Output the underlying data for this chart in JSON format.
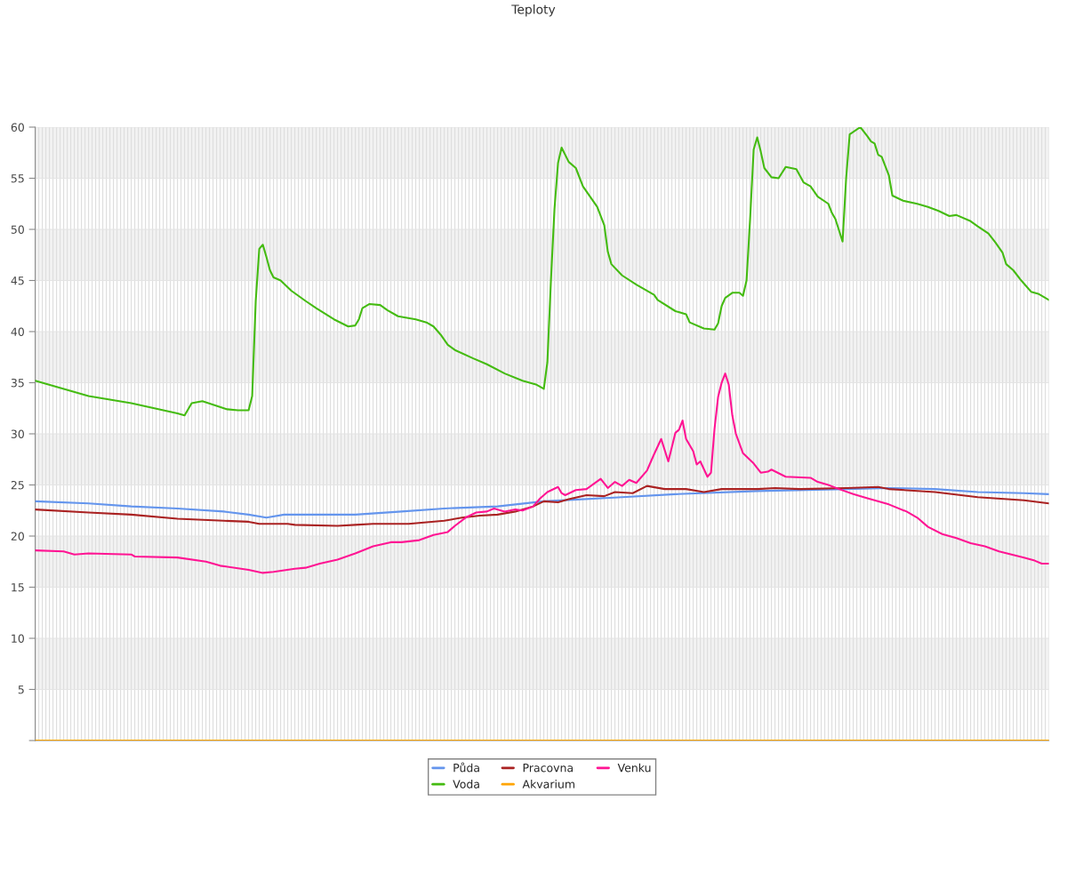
{
  "chart_data": {
    "type": "line",
    "title": "Teploty",
    "categories": [
      null,
      null,
      null,
      null,
      null,
      null,
      null,
      null,
      null,
      null,
      null,
      null,
      null,
      null,
      null,
      null,
      null,
      null,
      null,
      null,
      null,
      null,
      null,
      null,
      null,
      null,
      null,
      null,
      null,
      null,
      null,
      null,
      null,
      null,
      null,
      null,
      null,
      null,
      null,
      null,
      null,
      null,
      null,
      null,
      null,
      null,
      null,
      null,
      null,
      null,
      null,
      null,
      null,
      null,
      null,
      null,
      null,
      null,
      null,
      null,
      null,
      null,
      null,
      null,
      null,
      null,
      null,
      null,
      null,
      null,
      null,
      null,
      null,
      null,
      null,
      null,
      null,
      null,
      null,
      null,
      null,
      null,
      null,
      null,
      null,
      null,
      null,
      null,
      null,
      null,
      null,
      null,
      null,
      null,
      null,
      null,
      null,
      null,
      null,
      null,
      null,
      null,
      null,
      null,
      null,
      null,
      null,
      null,
      null,
      null,
      null,
      null,
      null,
      null,
      null,
      null,
      null,
      null,
      null,
      null,
      null,
      null,
      null,
      null,
      null,
      null,
      null,
      null,
      null,
      null,
      null,
      null,
      null,
      null,
      null,
      null,
      null,
      null,
      null,
      null,
      null,
      null,
      null,
      null,
      null,
      null,
      null,
      null,
      null,
      null,
      null,
      null,
      null,
      null,
      null,
      null,
      null,
      null,
      null,
      null,
      null,
      null,
      null,
      null,
      null,
      null,
      null,
      null,
      null,
      null,
      null,
      null,
      null,
      null,
      null,
      null,
      null,
      null,
      null,
      null,
      null,
      null,
      null,
      null,
      null,
      null,
      null,
      null,
      null,
      null,
      null,
      null,
      null,
      null,
      null,
      null,
      null,
      null,
      null,
      null,
      null,
      null,
      null,
      null,
      null,
      null,
      null,
      null,
      null,
      null,
      null,
      null,
      null,
      null,
      null,
      null,
      null,
      null,
      null,
      null,
      null,
      null,
      null,
      null,
      null,
      null,
      null,
      null,
      null,
      null,
      null,
      null,
      null,
      null,
      null,
      null,
      null,
      null,
      null,
      null,
      null,
      null,
      null,
      null,
      null,
      null,
      null,
      null,
      null,
      null,
      null,
      null,
      null,
      null,
      null,
      null,
      null,
      null,
      null,
      null,
      null,
      null,
      null,
      null,
      null,
      null,
      null,
      null,
      null,
      null,
      null,
      null,
      null,
      null,
      null,
      null,
      null,
      null,
      null,
      null,
      null,
      null,
      null,
      null,
      null,
      null
    ],
    "ylim": [
      0,
      60
    ],
    "yticks": [
      {
        "value": 0,
        "label": null
      },
      5,
      10,
      15,
      20,
      25,
      30,
      35,
      40,
      45,
      50,
      55,
      60
    ],
    "grid": true,
    "legend": "bottom",
    "marker": "none",
    "line_style": "solid",
    "bands": [
      {
        "axis": "y",
        "from": 5,
        "to": 10,
        "color": "#f2f2f2"
      },
      {
        "axis": "y",
        "from": 15,
        "to": 20,
        "color": "#f2f2f2"
      },
      {
        "axis": "y",
        "from": 25,
        "to": 30,
        "color": "#f2f2f2"
      },
      {
        "axis": "y",
        "from": 35,
        "to": 40,
        "color": "#f2f2f2"
      },
      {
        "axis": "y",
        "from": 45,
        "to": 50,
        "color": "#f2f2f2"
      },
      {
        "axis": "y",
        "from": 55,
        "to": 60,
        "color": "#f2f2f2"
      }
    ],
    "series": [
      {
        "name": "Půda",
        "color": "#6495ed",
        "values": [
          23.4,
          null,
          null,
          null,
          null,
          null,
          null,
          null,
          null,
          null,
          null,
          null,
          null,
          null,
          null,
          23.2,
          null,
          null,
          null,
          null,
          null,
          null,
          null,
          null,
          null,
          null,
          null,
          22.9,
          null,
          null,
          null,
          null,
          null,
          null,
          null,
          null,
          null,
          null,
          null,
          null,
          22.7,
          null,
          null,
          null,
          null,
          null,
          null,
          null,
          null,
          null,
          null,
          null,
          null,
          22.4,
          null,
          null,
          null,
          null,
          null,
          null,
          22.1,
          null,
          null,
          null,
          null,
          21.8,
          null,
          null,
          null,
          null,
          22.1,
          null,
          null,
          null,
          null,
          null,
          null,
          null,
          null,
          null,
          null,
          null,
          null,
          null,
          null,
          null,
          null,
          null,
          null,
          null,
          22.1,
          null,
          null,
          null,
          null,
          null,
          null,
          null,
          null,
          null,
          null,
          null,
          null,
          22.4,
          null,
          null,
          null,
          null,
          null,
          null,
          null,
          null,
          null,
          null,
          null,
          22.7,
          null,
          null,
          null,
          null,
          null,
          null,
          null,
          null,
          null,
          null,
          null,
          null,
          null,
          null,
          22.9,
          null,
          null,
          null,
          null,
          null,
          null,
          null,
          null,
          null,
          null,
          null,
          null,
          23.4,
          null,
          null,
          null,
          null,
          null,
          null,
          null,
          null,
          null,
          null,
          null,
          null,
          null,
          null,
          null,
          null,
          null,
          null,
          null,
          null,
          null,
          23.8,
          null,
          null,
          null,
          null,
          null,
          null,
          null,
          null,
          null,
          null,
          null,
          null,
          null,
          null,
          24.1,
          null,
          null,
          null,
          null,
          null,
          null,
          null,
          null,
          null,
          null,
          null,
          null,
          null,
          null,
          null,
          null,
          null,
          null,
          null,
          null,
          null,
          null,
          24.4,
          null,
          null,
          null,
          null,
          null,
          null,
          null,
          null,
          null,
          null,
          null,
          null,
          null,
          null,
          null,
          null,
          null,
          null,
          null,
          null,
          null,
          null,
          null,
          null,
          24.6,
          null,
          null,
          null,
          null,
          null,
          null,
          null,
          null,
          null,
          null,
          null,
          24.7,
          null,
          null,
          null,
          null,
          null,
          null,
          null,
          null,
          null,
          null,
          null,
          null,
          24.6,
          null,
          null,
          null,
          null,
          null,
          null,
          null,
          null,
          null,
          null,
          null,
          24.3,
          null,
          null,
          null,
          null,
          null,
          null,
          null,
          null,
          null,
          null,
          null,
          null,
          24.2,
          null,
          null,
          null,
          null,
          null,
          null,
          24.1
        ]
      },
      {
        "name": "Voda",
        "color": "#44bb11",
        "values": [
          35.2,
          null,
          null,
          null,
          null,
          34.7,
          null,
          null,
          null,
          null,
          null,
          null,
          null,
          null,
          null,
          33.7,
          null,
          null,
          null,
          null,
          null,
          null,
          null,
          null,
          null,
          null,
          null,
          33.0,
          null,
          null,
          null,
          null,
          null,
          null,
          null,
          null,
          null,
          null,
          null,
          null,
          32.0,
          null,
          31.8,
          null,
          33.0,
          null,
          null,
          33.2,
          null,
          null,
          null,
          null,
          null,
          null,
          32.4,
          null,
          null,
          32.3,
          null,
          null,
          32.3,
          33.7,
          43,
          48.1,
          48.5,
          47.3,
          46,
          45.3,
          null,
          45.0,
          null,
          null,
          44.0,
          null,
          null,
          null,
          43.0,
          null,
          null,
          42.3,
          null,
          null,
          null,
          null,
          41.2,
          null,
          null,
          null,
          40.5,
          null,
          40.6,
          41.2,
          42.3,
          null,
          42.7,
          null,
          null,
          42.6,
          null,
          42.1,
          null,
          null,
          41.5,
          null,
          null,
          null,
          null,
          41.2,
          null,
          null,
          40.9,
          null,
          40.5,
          null,
          39.7,
          null,
          38.7,
          null,
          38.2,
          null,
          null,
          null,
          null,
          37.4,
          null,
          null,
          null,
          36.8,
          null,
          null,
          null,
          null,
          35.9,
          null,
          null,
          null,
          null,
          35.2,
          null,
          null,
          null,
          34.8,
          null,
          34.4,
          37,
          45,
          52,
          56.5,
          58.0,
          null,
          56.6,
          null,
          56,
          null,
          54.2,
          null,
          53.2,
          null,
          52.2,
          null,
          50.4,
          47.8,
          46.6,
          null,
          null,
          45.5,
          null,
          null,
          null,
          44.6,
          null,
          null,
          null,
          null,
          43.6,
          43.1,
          null,
          null,
          null,
          null,
          42.0,
          null,
          null,
          41.7,
          40.9,
          null,
          null,
          null,
          40.3,
          null,
          null,
          40.2,
          40.8,
          42.5,
          43.3,
          null,
          43.8,
          null,
          43.8,
          43.5,
          45,
          51,
          57.8,
          59.0,
          57.6,
          56,
          null,
          55.1,
          null,
          55.0,
          null,
          56.1,
          null,
          null,
          55.9,
          null,
          54.6,
          null,
          54.2,
          null,
          53.2,
          null,
          null,
          52.5,
          51.6,
          51.0,
          null,
          48.8,
          55.0,
          59.3,
          null,
          null,
          60.0,
          null,
          59.1,
          58.6,
          58.4,
          57.3,
          57.1,
          null,
          55.3,
          53.3,
          null,
          null,
          52.8,
          null,
          null,
          null,
          52.5,
          null,
          null,
          52.2,
          null,
          null,
          51.8,
          null,
          null,
          51.3,
          null,
          51.4,
          null,
          null,
          null,
          50.8,
          null,
          50.3,
          null,
          null,
          49.6,
          null,
          48.7,
          null,
          47.7,
          46.6,
          null,
          46.0,
          null,
          45.1,
          44.7,
          null,
          43.9,
          null,
          43.7,
          null,
          null,
          43.1
        ]
      },
      {
        "name": "Pracovna",
        "color": "#aa2222",
        "values": [
          22.6,
          null,
          null,
          null,
          null,
          null,
          null,
          null,
          null,
          null,
          null,
          null,
          null,
          null,
          null,
          22.3,
          null,
          null,
          null,
          null,
          null,
          null,
          null,
          null,
          null,
          null,
          null,
          22.1,
          null,
          null,
          null,
          null,
          null,
          null,
          null,
          null,
          null,
          null,
          null,
          null,
          21.7,
          null,
          null,
          null,
          null,
          null,
          null,
          null,
          null,
          null,
          null,
          null,
          null,
          21.5,
          null,
          null,
          null,
          null,
          null,
          null,
          21.4,
          null,
          null,
          21.2,
          null,
          null,
          null,
          null,
          null,
          null,
          null,
          21.2,
          null,
          21.1,
          null,
          null,
          null,
          null,
          null,
          null,
          null,
          null,
          null,
          null,
          null,
          21.0,
          null,
          null,
          null,
          null,
          21.1,
          null,
          null,
          null,
          null,
          21.2,
          null,
          null,
          null,
          null,
          null,
          null,
          null,
          null,
          null,
          21.2,
          null,
          null,
          null,
          null,
          null,
          null,
          null,
          null,
          null,
          21.5,
          null,
          null,
          null,
          null,
          21.8,
          null,
          null,
          null,
          null,
          22.0,
          null,
          null,
          null,
          null,
          22.1,
          null,
          null,
          null,
          null,
          22.4,
          null,
          null,
          null,
          null,
          22.9,
          null,
          null,
          23.4,
          null,
          null,
          null,
          23.3,
          null,
          null,
          23.6,
          null,
          null,
          null,
          null,
          24.0,
          null,
          null,
          null,
          null,
          23.9,
          null,
          null,
          24.3,
          null,
          null,
          null,
          null,
          24.2,
          null,
          null,
          null,
          24.9,
          null,
          null,
          null,
          null,
          24.6,
          null,
          null,
          null,
          null,
          null,
          24.6,
          null,
          null,
          null,
          null,
          24.3,
          null,
          null,
          null,
          null,
          24.6,
          null,
          null,
          null,
          null,
          null,
          null,
          null,
          null,
          null,
          24.6,
          null,
          null,
          null,
          null,
          24.7,
          null,
          null,
          null,
          null,
          null,
          null,
          24.6,
          null,
          null,
          null,
          null,
          null,
          null,
          null,
          null,
          null,
          null,
          null,
          null,
          24.7,
          null,
          null,
          null,
          null,
          null,
          null,
          null,
          null,
          24.8,
          null,
          null,
          24.6,
          null,
          null,
          null,
          null,
          null,
          null,
          null,
          null,
          null,
          null,
          null,
          null,
          24.3,
          null,
          null,
          null,
          null,
          null,
          null,
          null,
          null,
          null,
          null,
          null,
          23.8,
          null,
          null,
          null,
          null,
          null,
          null,
          null,
          null,
          null,
          null,
          null,
          null,
          23.5,
          null,
          null,
          null,
          null,
          null,
          null,
          23.2
        ]
      },
      {
        "name": "Akvarium",
        "color": "#ffa500",
        "values": [
          0,
          0,
          0,
          0,
          0,
          0,
          0,
          0,
          0,
          0,
          0,
          0,
          0,
          0,
          0,
          0,
          0,
          0,
          0,
          0,
          0,
          0,
          0,
          0,
          0,
          0,
          0,
          0,
          0,
          0,
          0,
          0,
          0,
          0,
          0,
          0,
          0,
          0,
          0,
          0,
          0,
          0,
          0,
          0,
          0,
          0,
          0,
          0,
          0,
          0,
          0,
          0,
          0,
          0,
          0,
          0,
          0,
          0,
          0,
          0,
          0,
          0,
          0,
          0,
          0,
          0,
          0,
          0,
          0,
          0,
          0,
          0,
          0,
          0,
          0,
          0,
          0,
          0,
          0,
          0,
          0,
          0,
          0,
          0,
          0,
          0,
          0,
          0,
          0,
          0,
          0,
          0,
          0,
          0,
          0,
          0,
          0,
          0,
          0,
          0,
          0,
          0,
          0,
          0,
          0,
          0,
          0,
          0,
          0,
          0,
          0,
          0,
          0,
          0,
          0,
          0,
          0,
          0,
          0,
          0,
          0,
          0,
          0,
          0,
          0,
          0,
          0,
          0,
          0,
          0,
          0,
          0,
          0,
          0,
          0,
          0,
          0,
          0,
          0,
          0,
          0,
          0,
          0,
          0,
          0,
          0,
          0,
          0,
          0,
          0,
          0,
          0,
          0,
          0,
          0,
          0,
          0,
          0,
          0,
          0,
          0,
          0,
          0,
          0,
          0,
          0,
          0,
          0,
          0,
          0,
          0,
          0,
          0,
          0,
          0,
          0,
          0,
          0,
          0,
          0,
          0,
          0,
          0,
          0,
          0,
          0,
          0,
          0,
          0,
          0,
          0,
          0,
          0,
          0,
          0,
          0,
          0,
          0,
          0,
          0,
          0,
          0,
          0,
          0,
          0,
          0,
          0,
          0,
          0,
          0,
          0,
          0,
          0,
          0,
          0,
          0,
          0,
          0,
          0,
          0,
          0,
          0,
          0,
          0,
          0,
          0,
          0,
          0,
          0,
          0,
          0,
          0,
          0,
          0,
          0,
          0,
          0,
          0,
          0,
          0,
          0,
          0,
          0,
          0,
          0,
          0,
          0,
          0,
          0,
          0,
          0,
          0,
          0,
          0,
          0,
          0,
          0,
          0,
          0,
          0,
          0,
          0,
          0,
          0,
          0,
          0,
          0,
          0,
          0,
          0,
          0,
          0,
          0,
          0,
          0,
          0,
          0,
          0,
          0,
          0,
          0,
          0,
          0,
          0,
          0,
          0
        ]
      },
      {
        "name": "Venku",
        "color": "#ff1493",
        "values": [
          18.6,
          null,
          null,
          null,
          null,
          null,
          null,
          null,
          18.5,
          null,
          null,
          18.2,
          null,
          null,
          null,
          18.3,
          null,
          null,
          null,
          null,
          null,
          null,
          null,
          null,
          null,
          null,
          null,
          18.2,
          18.0,
          null,
          null,
          null,
          null,
          null,
          null,
          null,
          null,
          null,
          null,
          null,
          17.9,
          null,
          null,
          null,
          null,
          null,
          null,
          null,
          17.5,
          null,
          null,
          null,
          17.1,
          null,
          null,
          null,
          null,
          null,
          null,
          null,
          16.7,
          null,
          null,
          null,
          16.4,
          null,
          null,
          16.5,
          null,
          null,
          null,
          null,
          null,
          16.8,
          null,
          null,
          16.9,
          null,
          null,
          null,
          17.3,
          null,
          null,
          null,
          null,
          17.7,
          null,
          null,
          null,
          null,
          18.3,
          null,
          null,
          null,
          null,
          19.0,
          null,
          null,
          null,
          null,
          19.4,
          null,
          null,
          19.4,
          null,
          null,
          null,
          null,
          19.6,
          null,
          null,
          null,
          20.1,
          null,
          null,
          null,
          20.4,
          null,
          21.0,
          null,
          null,
          21.8,
          null,
          null,
          22.3,
          null,
          null,
          22.4,
          null,
          22.7,
          null,
          null,
          22.4,
          null,
          null,
          22.6,
          null,
          22.5,
          null,
          null,
          22.9,
          null,
          23.7,
          null,
          24.3,
          null,
          null,
          24.8,
          24.2,
          24.0,
          null,
          null,
          24.5,
          null,
          null,
          24.6,
          null,
          25.1,
          null,
          25.6,
          null,
          24.7,
          null,
          25.3,
          null,
          24.9,
          null,
          25.5,
          null,
          25.2,
          null,
          null,
          26.4,
          null,
          28.0,
          null,
          29.5,
          null,
          27.3,
          null,
          30.1,
          30.4,
          31.3,
          29.5,
          null,
          28.3,
          27.0,
          27.3,
          null,
          25.8,
          26.2,
          30.5,
          33.6,
          35.0,
          35.9,
          34.8,
          31.8,
          30.0,
          null,
          28.1,
          null,
          null,
          27.1,
          null,
          26.2,
          null,
          26.3,
          26.5,
          null,
          null,
          null,
          25.8,
          null,
          null,
          null,
          null,
          null,
          null,
          25.7,
          null,
          25.3,
          null,
          null,
          25.0,
          null,
          null,
          24.6,
          null,
          null,
          null,
          24.1,
          null,
          null,
          null,
          23.7,
          null,
          null,
          null,
          null,
          null,
          23.1,
          null,
          null,
          null,
          null,
          22.4,
          null,
          null,
          21.8,
          null,
          null,
          20.9,
          null,
          null,
          null,
          20.2,
          null,
          null,
          null,
          19.8,
          null,
          null,
          null,
          19.3,
          null,
          null,
          null,
          19.0,
          null,
          null,
          null,
          18.5,
          null,
          null,
          null,
          null,
          null,
          null,
          17.9,
          null,
          null,
          17.6,
          null,
          17.3,
          null,
          17.3
        ]
      }
    ]
  }
}
